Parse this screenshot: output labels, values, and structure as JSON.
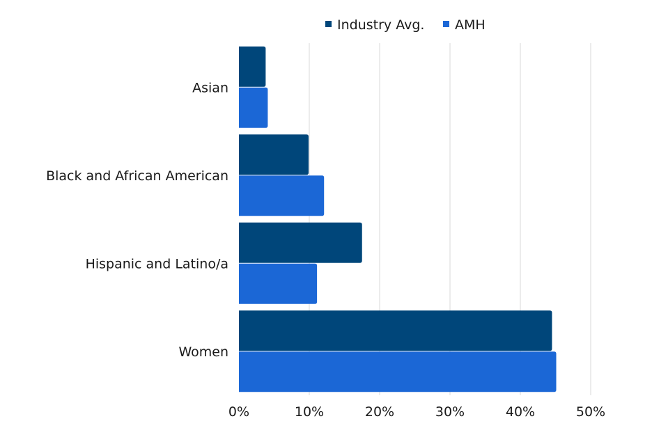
{
  "chart_data": {
    "type": "bar",
    "orientation": "horizontal",
    "categories": [
      "Asian",
      "Black and African American",
      "Hispanic and Latino/a",
      "Women"
    ],
    "series": [
      {
        "name": "Industry Avg.",
        "values": [
          3.8,
          9.9,
          17.5,
          44.5
        ],
        "color": "#00467a"
      },
      {
        "name": "AMH",
        "values": [
          4.1,
          12.1,
          11.1,
          45.1
        ],
        "color": "#1b67d6"
      }
    ],
    "xlim": [
      0,
      50
    ],
    "xticks": [
      "0%",
      "10%",
      "20%",
      "30%",
      "40%",
      "50%"
    ],
    "unit": "%",
    "grid": "vertical",
    "legend": "top"
  }
}
